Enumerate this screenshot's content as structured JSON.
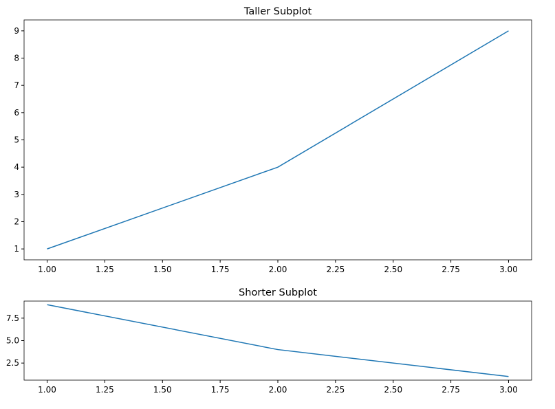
{
  "chart_data": [
    {
      "type": "line",
      "title": "Taller Subplot",
      "x": [
        1,
        2,
        3
      ],
      "series": [
        {
          "color": "#1f77b4",
          "values": [
            1,
            4,
            9
          ]
        }
      ],
      "xlim": [
        0.9,
        3.1
      ],
      "xticks": [
        {
          "value": 1,
          "label": "1.00"
        },
        {
          "value": 1.25,
          "label": "1.25"
        },
        {
          "value": 1.5,
          "label": "1.50"
        },
        {
          "value": 1.75,
          "label": "1.75"
        },
        {
          "value": 2,
          "label": "2.00"
        },
        {
          "value": 2.25,
          "label": "2.25"
        },
        {
          "value": 2.5,
          "label": "2.50"
        },
        {
          "value": 2.75,
          "label": "2.75"
        },
        {
          "value": 3,
          "label": "3.00"
        }
      ],
      "ylim": [
        0.6,
        9.4
      ],
      "yticks": [
        1,
        2,
        3,
        4,
        5,
        6,
        7,
        8,
        9
      ]
    },
    {
      "type": "line",
      "title": "Shorter Subplot",
      "x": [
        1,
        2,
        3
      ],
      "series": [
        {
          "color": "#1f77b4",
          "values": [
            9,
            4,
            1
          ]
        }
      ],
      "xlim": [
        0.9,
        3.1
      ],
      "xticks": [
        {
          "value": 1,
          "label": "1.00"
        },
        {
          "value": 1.25,
          "label": "1.25"
        },
        {
          "value": 1.5,
          "label": "1.50"
        },
        {
          "value": 1.75,
          "label": "1.75"
        },
        {
          "value": 2,
          "label": "2.00"
        },
        {
          "value": 2.25,
          "label": "2.25"
        },
        {
          "value": 2.5,
          "label": "2.50"
        },
        {
          "value": 2.75,
          "label": "2.75"
        },
        {
          "value": 3,
          "label": "3.00"
        }
      ],
      "ylim": [
        0.6,
        9.4
      ],
      "yticks": [
        2.5,
        {
          "value": 5,
          "label": "5.0"
        },
        7.5
      ]
    }
  ]
}
